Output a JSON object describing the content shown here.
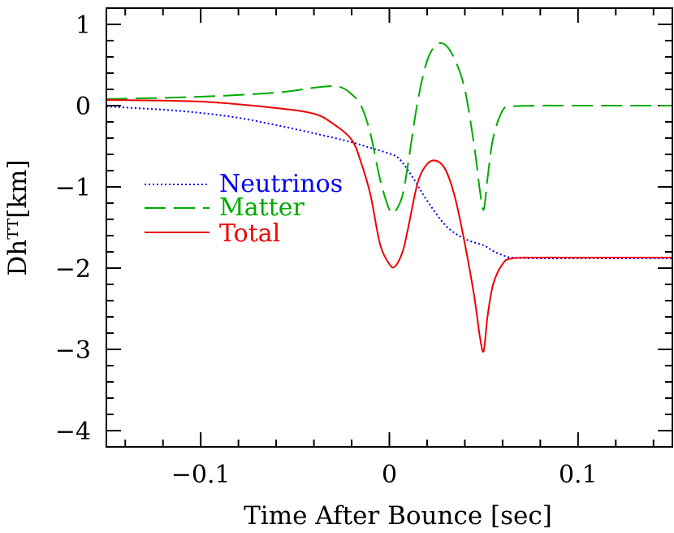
{
  "chart_data": {
    "type": "line",
    "xlabel": "Time After Bounce [sec]",
    "ylabel": "Dhᵀᵀ[km]",
    "xlim": [
      -0.15,
      0.15
    ],
    "ylim": [
      -4.2,
      1.2
    ],
    "xticks": [
      -0.1,
      0,
      0.1
    ],
    "xtick_labels": [
      "−0.1",
      "0",
      "0.1"
    ],
    "yticks": [
      1,
      0,
      -1,
      -2,
      -3,
      -4
    ],
    "ytick_labels": [
      "1",
      "0",
      "−1",
      "−2",
      "−3",
      "−4"
    ],
    "grid": false,
    "legend_position": "middle-left",
    "series": [
      {
        "name": "Neutrinos",
        "color": "#0000ee",
        "style": "dotted",
        "x": [
          -0.15,
          -0.12,
          -0.1,
          -0.08,
          -0.06,
          -0.04,
          -0.02,
          -0.01,
          0.0,
          0.005,
          0.01,
          0.015,
          0.02,
          0.03,
          0.04,
          0.05,
          0.055,
          0.06,
          0.065,
          0.08,
          0.1,
          0.12,
          0.15
        ],
        "y": [
          -0.01,
          -0.05,
          -0.09,
          -0.15,
          -0.24,
          -0.34,
          -0.45,
          -0.52,
          -0.59,
          -0.65,
          -0.8,
          -0.98,
          -1.17,
          -1.48,
          -1.64,
          -1.72,
          -1.79,
          -1.84,
          -1.87,
          -1.88,
          -1.88,
          -1.88,
          -1.88
        ]
      },
      {
        "name": "Matter",
        "color": "#00aa00",
        "style": "dashed",
        "x": [
          -0.15,
          -0.1,
          -0.06,
          -0.04,
          -0.03,
          -0.025,
          -0.02,
          -0.015,
          -0.01,
          -0.005,
          0.0,
          0.003,
          0.007,
          0.01,
          0.015,
          0.02,
          0.025,
          0.03,
          0.035,
          0.04,
          0.045,
          0.048,
          0.05,
          0.052,
          0.055,
          0.06,
          0.065,
          0.08,
          0.1,
          0.15
        ],
        "y": [
          0.08,
          0.11,
          0.16,
          0.22,
          0.24,
          0.22,
          0.14,
          0.0,
          -0.35,
          -0.9,
          -1.28,
          -1.3,
          -1.1,
          -0.7,
          0.05,
          0.55,
          0.75,
          0.74,
          0.55,
          0.2,
          -0.5,
          -1.05,
          -1.28,
          -0.9,
          -0.4,
          -0.06,
          -0.01,
          0.0,
          0.0,
          0.0
        ]
      },
      {
        "name": "Total",
        "color": "#ee0000",
        "style": "solid",
        "x": [
          -0.15,
          -0.1,
          -0.06,
          -0.04,
          -0.03,
          -0.02,
          -0.015,
          -0.01,
          -0.005,
          0.0,
          0.003,
          0.007,
          0.01,
          0.015,
          0.02,
          0.025,
          0.03,
          0.035,
          0.04,
          0.045,
          0.048,
          0.05,
          0.052,
          0.055,
          0.06,
          0.065,
          0.08,
          0.1,
          0.15
        ],
        "y": [
          0.07,
          0.05,
          -0.03,
          -0.1,
          -0.22,
          -0.42,
          -0.7,
          -1.1,
          -1.7,
          -1.95,
          -1.98,
          -1.8,
          -1.5,
          -0.95,
          -0.72,
          -0.68,
          -0.8,
          -1.15,
          -1.7,
          -2.35,
          -2.85,
          -3.02,
          -2.6,
          -2.2,
          -1.95,
          -1.88,
          -1.87,
          -1.87,
          -1.87
        ]
      }
    ]
  }
}
